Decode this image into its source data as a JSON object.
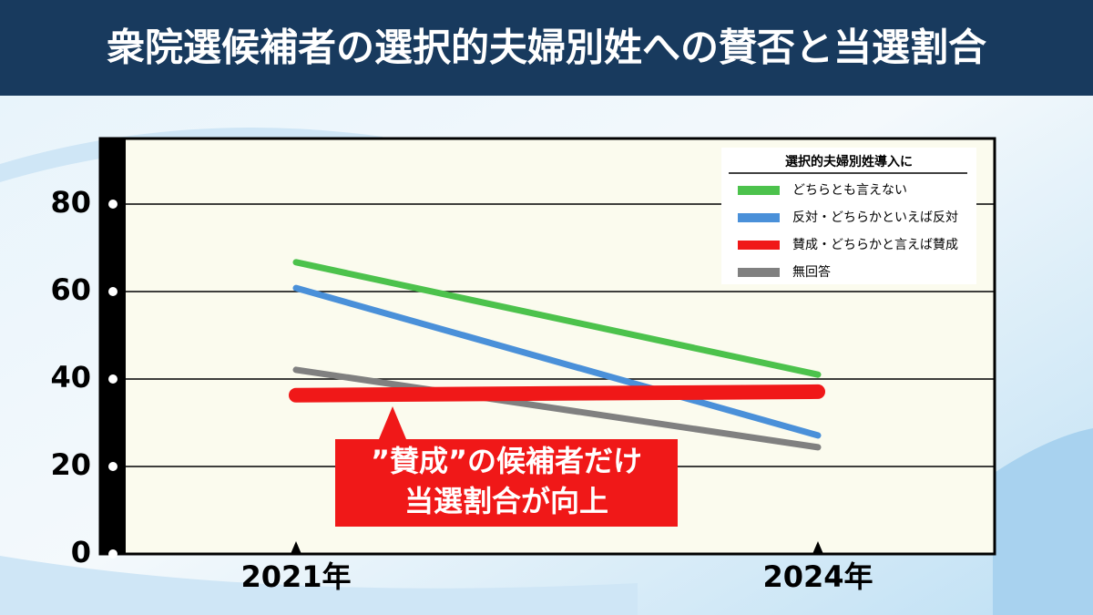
{
  "chart_data": {
    "type": "line",
    "title": "衆院選候補者の選択的夫婦別姓への賛否と当選割合",
    "categories": [
      "2021年",
      "2024年"
    ],
    "legend_title": "選択的夫婦別姓導入に",
    "legend": "upper right",
    "grid": true,
    "ylim": [
      0,
      95
    ],
    "yticks": [
      0,
      20,
      40,
      60,
      80
    ],
    "series": [
      {
        "name": "どちらとも言えない",
        "color": "#4cc24c",
        "values": [
          66.7,
          41
        ]
      },
      {
        "name": "反対・どちらかといえば反対",
        "color": "#4a90d9",
        "values": [
          60.8,
          27.1
        ]
      },
      {
        "name": "賛成・どちらかと言えば賛成",
        "color": "#f01818",
        "values": [
          36.3,
          37.1
        ]
      },
      {
        "name": "無回答",
        "color": "#808080",
        "values": [
          42.1,
          24.4
        ]
      }
    ],
    "annotation": [
      "”賛成”の候補者だけ",
      "当選割合が向上"
    ]
  }
}
